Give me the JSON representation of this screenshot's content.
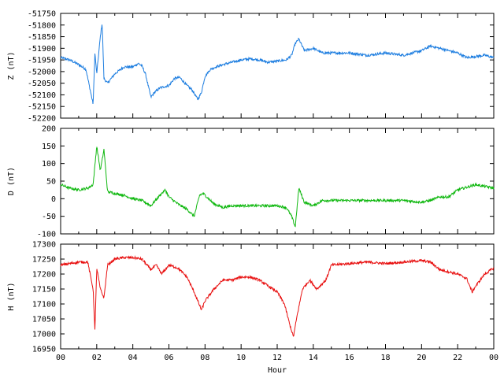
{
  "chart_data": [
    {
      "type": "line",
      "ylabel": "Z (nT)",
      "xlabel": "",
      "color": "#1e7ee0",
      "ylim": [
        -52200,
        -51750
      ],
      "yticks": [
        -51750,
        -51800,
        -51850,
        -51900,
        -51950,
        -52000,
        -52050,
        -52100,
        -52150,
        -52200
      ],
      "xlim": [
        0,
        24
      ],
      "x": [
        0,
        0.5,
        1,
        1.4,
        1.8,
        1.9,
        2.0,
        2.1,
        2.2,
        2.3,
        2.4,
        2.6,
        2.8,
        3.0,
        3.5,
        4.0,
        4.3,
        4.5,
        4.7,
        5.0,
        5.2,
        5.5,
        6.0,
        6.3,
        6.6,
        7.0,
        7.3,
        7.6,
        7.8,
        8.0,
        8.3,
        8.6,
        9.0,
        9.5,
        10.0,
        10.5,
        11.0,
        11.5,
        12.0,
        12.5,
        12.8,
        13.0,
        13.2,
        13.5,
        14.0,
        14.5,
        15,
        16,
        17,
        18,
        19,
        20,
        20.5,
        21,
        22,
        22.5,
        23,
        23.5,
        24
      ],
      "series": [
        {
          "values": [
            -51940,
            -51950,
            -51970,
            -51990,
            -52140,
            -51920,
            -52010,
            -51930,
            -51850,
            -51790,
            -52030,
            -52050,
            -52030,
            -52010,
            -51980,
            -51980,
            -51965,
            -51975,
            -52010,
            -52110,
            -52090,
            -52070,
            -52060,
            -52030,
            -52025,
            -52060,
            -52080,
            -52120,
            -52090,
            -52020,
            -51990,
            -51980,
            -51970,
            -51960,
            -51950,
            -51945,
            -51950,
            -51960,
            -51955,
            -51950,
            -51930,
            -51880,
            -51860,
            -51910,
            -51900,
            -51920,
            -51920,
            -51920,
            -51930,
            -51920,
            -51930,
            -51910,
            -51890,
            -51900,
            -51920,
            -51940,
            -51935,
            -51930,
            -51940
          ]
        }
      ]
    },
    {
      "type": "line",
      "ylabel": "D (nT)",
      "xlabel": "",
      "color": "#10b810",
      "ylim": [
        -100,
        200
      ],
      "yticks": [
        200,
        150,
        100,
        50,
        0,
        -50,
        -100
      ],
      "xlim": [
        0,
        24
      ],
      "x": [
        0,
        0.5,
        1,
        1.5,
        1.8,
        2.0,
        2.2,
        2.4,
        2.6,
        3.0,
        3.5,
        4.0,
        4.5,
        5.0,
        5.5,
        5.8,
        6.0,
        6.5,
        7.0,
        7.4,
        7.7,
        7.9,
        8.2,
        8.5,
        9.0,
        9.5,
        10,
        11,
        12,
        12.5,
        12.8,
        13.0,
        13.2,
        13.5,
        14.0,
        14.5,
        15,
        16,
        17,
        18,
        19,
        20,
        20.5,
        21,
        21.5,
        22,
        23,
        24
      ],
      "series": [
        {
          "values": [
            40,
            30,
            25,
            30,
            40,
            150,
            80,
            140,
            20,
            15,
            10,
            0,
            -5,
            -20,
            10,
            25,
            5,
            -15,
            -30,
            -50,
            10,
            15,
            0,
            -15,
            -25,
            -20,
            -20,
            -20,
            -20,
            -25,
            -50,
            -80,
            30,
            -10,
            -20,
            -5,
            -5,
            -5,
            -5,
            -5,
            -5,
            -10,
            -5,
            5,
            5,
            25,
            40,
            30
          ]
        }
      ]
    },
    {
      "type": "line",
      "ylabel": "H (nT)",
      "xlabel": "Hour",
      "color": "#e81010",
      "ylim": [
        16950,
        17300
      ],
      "yticks": [
        17300,
        17250,
        17200,
        17150,
        17100,
        17050,
        17000,
        16950
      ],
      "xticks": [
        "00",
        "02",
        "04",
        "06",
        "08",
        "10",
        "12",
        "14",
        "16",
        "18",
        "20",
        "22",
        "00"
      ],
      "xlim": [
        0,
        24
      ],
      "x": [
        0,
        0.5,
        1,
        1.5,
        1.8,
        1.9,
        2.0,
        2.2,
        2.4,
        2.6,
        3,
        3.5,
        4,
        4.5,
        5.0,
        5.3,
        5.6,
        6.0,
        6.5,
        7.0,
        7.4,
        7.8,
        8.0,
        8.5,
        9.0,
        9.5,
        10,
        10.5,
        11,
        11.5,
        12,
        12.4,
        12.7,
        12.9,
        13.1,
        13.4,
        13.8,
        14.2,
        14.7,
        15,
        16,
        17,
        18,
        19,
        20,
        20.5,
        21,
        22,
        22.5,
        22.8,
        23,
        23.5,
        24
      ],
      "series": [
        {
          "values": [
            17230,
            17235,
            17240,
            17240,
            17150,
            17010,
            17220,
            17150,
            17120,
            17230,
            17250,
            17255,
            17255,
            17250,
            17215,
            17230,
            17200,
            17230,
            17220,
            17190,
            17140,
            17080,
            17110,
            17150,
            17180,
            17180,
            17190,
            17190,
            17180,
            17160,
            17140,
            17100,
            17030,
            16990,
            17060,
            17150,
            17180,
            17150,
            17180,
            17230,
            17235,
            17240,
            17235,
            17240,
            17245,
            17240,
            17215,
            17200,
            17185,
            17140,
            17160,
            17200,
            17220
          ]
        }
      ]
    }
  ]
}
